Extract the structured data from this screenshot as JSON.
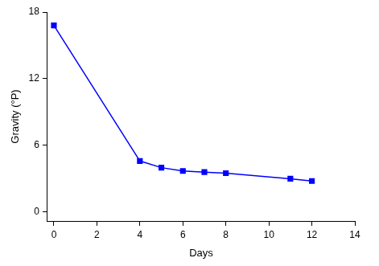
{
  "chart_data": {
    "type": "line",
    "x_label": "Days",
    "y_label": "Gravity (°P)",
    "x": [
      0,
      4,
      5,
      6,
      7,
      8,
      11,
      12
    ],
    "values": [
      16.8,
      4.6,
      4.0,
      3.7,
      3.6,
      3.5,
      3.0,
      2.8
    ],
    "color": "#0000ff",
    "marker": "square",
    "line_style": "solid",
    "xlim": [
      -0.3,
      14
    ],
    "xticks": [
      0,
      2,
      4,
      6,
      8,
      10,
      12,
      14
    ],
    "ylim": [
      -0.8,
      18
    ],
    "yticks": [
      0,
      6,
      12,
      18
    ],
    "grid": false
  }
}
